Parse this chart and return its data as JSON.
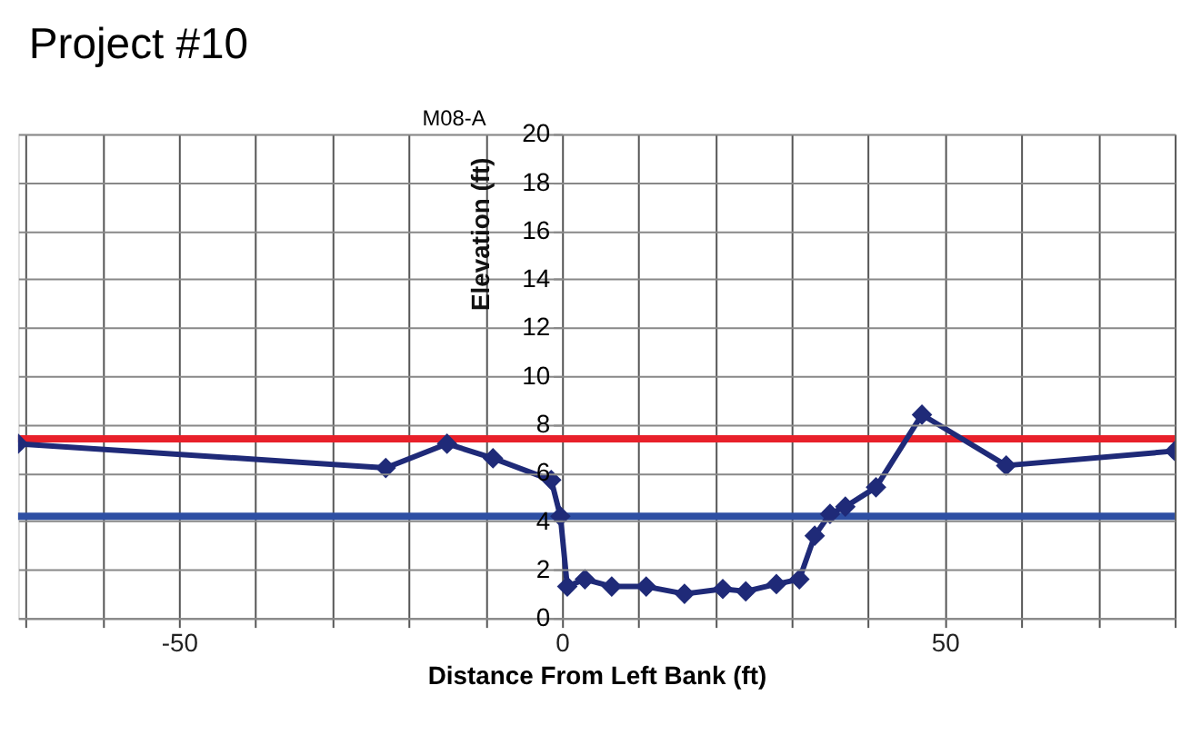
{
  "chart_data": {
    "type": "line",
    "title": "Project #10",
    "xlabel": "Distance From Left Bank  (ft)",
    "ylabel": "Elevation (ft)",
    "annotations": [
      "M08-A"
    ],
    "x": [
      -71,
      -23,
      -15,
      -9,
      -1.4,
      -0.2,
      0.7,
      3,
      6.5,
      11,
      16,
      21,
      24,
      28,
      31,
      33,
      35,
      37,
      41,
      47,
      58,
      80
    ],
    "series": [
      {
        "color": "#1f2a78",
        "values": [
          7.2,
          6.2,
          7.2,
          6.6,
          5.7,
          4.2,
          1.3,
          1.6,
          1.3,
          1.3,
          1.0,
          1.2,
          1.1,
          1.4,
          1.6,
          3.4,
          4.3,
          4.6,
          5.4,
          8.4,
          6.3,
          6.9
        ]
      }
    ],
    "marker": "diamond",
    "grid": true,
    "xlim": [
      -71,
      80
    ],
    "xticks": [
      {
        "value": -70,
        "label": null
      },
      {
        "value": -60,
        "label": null
      },
      -50,
      {
        "value": -40,
        "label": null
      },
      {
        "value": -30,
        "label": null
      },
      {
        "value": -20,
        "label": null
      },
      {
        "value": -10,
        "label": null
      },
      0,
      {
        "value": 10,
        "label": null
      },
      {
        "value": 20,
        "label": null
      },
      {
        "value": 30,
        "label": null
      },
      {
        "value": 40,
        "label": null
      },
      50,
      {
        "value": 60,
        "label": null
      },
      {
        "value": 70,
        "label": null
      },
      {
        "value": 80,
        "label": null
      }
    ],
    "ylim": [
      0,
      20
    ],
    "yticks": [
      0,
      2,
      4,
      6,
      8,
      10,
      12,
      14,
      16,
      18,
      20
    ],
    "ref_lines": [
      {
        "axis": "y",
        "value": 7.4,
        "color": "#e8202a"
      },
      {
        "axis": "y",
        "value": 4.2,
        "color": "#2e4fa3"
      }
    ]
  }
}
